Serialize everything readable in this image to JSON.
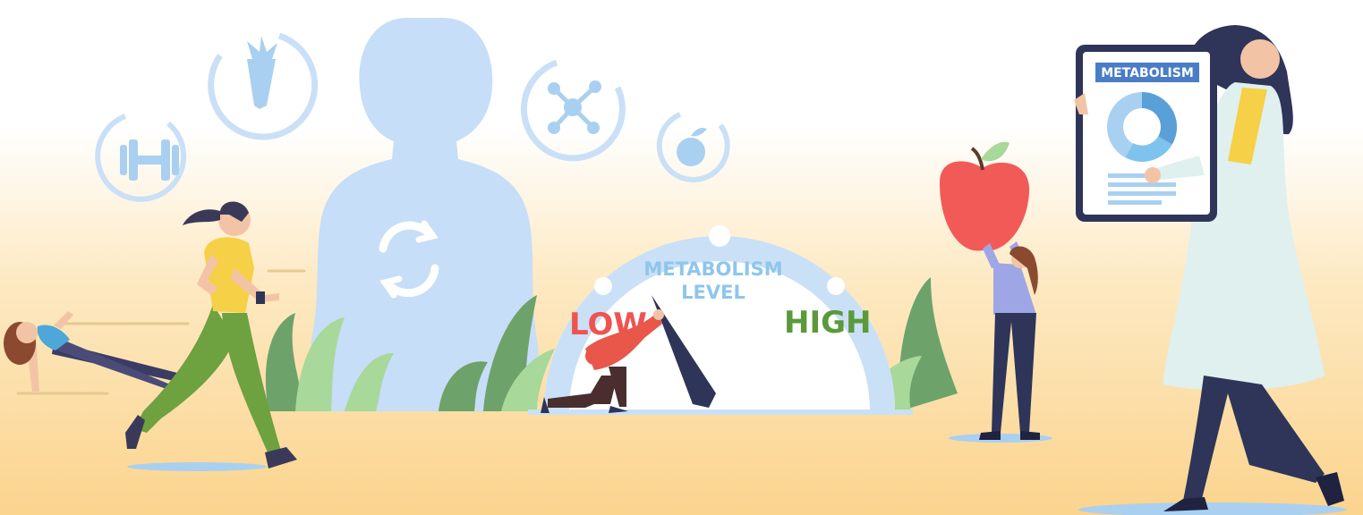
{
  "scene": {
    "gauge": {
      "title_line1": "METABOLISM",
      "title_line2": "LEVEL",
      "low_label": "LOW",
      "high_label": "HIGH"
    },
    "tablet": {
      "header_label": "METABOLISM"
    }
  },
  "colors": {
    "background_top": "#ffffff",
    "background_bottom": "#fcd896",
    "light_blue": "#c9e0f7",
    "icon_blue": "#a9d0f0",
    "low_red": "#ef5350",
    "high_green": "#5a9a3c",
    "gauge_text_blue": "#8ec6ec",
    "tablet_header_blue": "#4a7dc6",
    "plant_dark": "#6da36b",
    "plant_light": "#a8d89a",
    "apple_red": "#f25a57"
  },
  "icons": [
    "carrot-icon",
    "dumbbell-icon",
    "molecule-icon",
    "apple-icon",
    "refresh-icon"
  ]
}
